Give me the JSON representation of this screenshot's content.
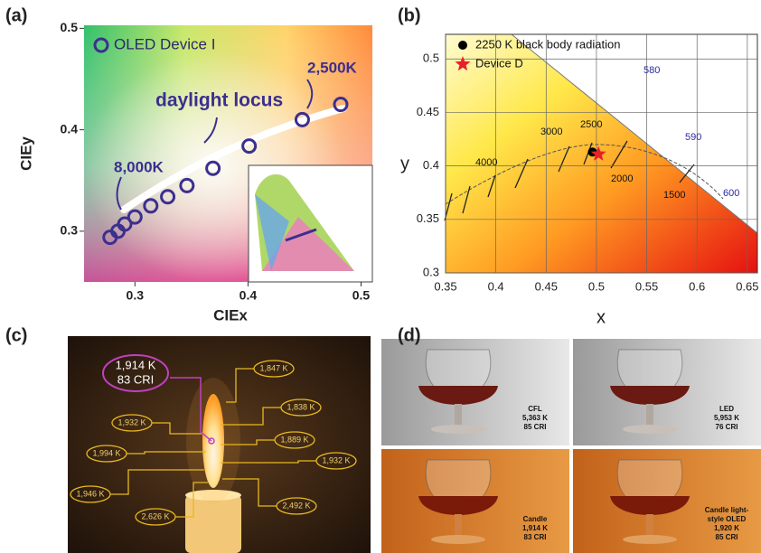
{
  "panel_labels": [
    "(a)",
    "(b)",
    "(c)",
    "(d)"
  ],
  "chart_data": [
    {
      "type": "scatter",
      "xlabel": "CIEx",
      "ylabel": "CIEy",
      "xlim": [
        0.255,
        0.51
      ],
      "ylim": [
        0.25,
        0.503
      ],
      "xticks": [
        0.3,
        0.4,
        0.5
      ],
      "yticks": [
        0.3,
        0.4,
        0.5
      ],
      "grid": false,
      "legend": "upper left",
      "series": [
        {
          "name": "OLED Device I",
          "color": "#3b2f8f",
          "marker": "ring",
          "x": [
            0.278,
            0.285,
            0.291,
            0.3,
            0.314,
            0.329,
            0.346,
            0.369,
            0.401,
            0.448,
            0.482
          ],
          "y": [
            0.294,
            0.3,
            0.307,
            0.314,
            0.325,
            0.334,
            0.345,
            0.362,
            0.384,
            0.41,
            0.425
          ]
        }
      ],
      "annotations": [
        "daylight locus",
        "8,000K",
        "2,500K"
      ]
    },
    {
      "type": "scatter",
      "xlabel": "x",
      "ylabel": "y",
      "xlim": [
        0.35,
        0.66
      ],
      "ylim": [
        0.3,
        0.523
      ],
      "xticks": [
        0.35,
        0.4,
        0.45,
        0.5,
        0.55,
        0.6,
        0.65
      ],
      "yticks": [
        0.3,
        0.35,
        0.4,
        0.45,
        0.5
      ],
      "grid": true,
      "legend": "upper left",
      "series": [
        {
          "name": "2250 K black body radiation",
          "color": "#000000",
          "marker": "circle",
          "x": [
            0.496
          ],
          "y": [
            0.413
          ]
        },
        {
          "name": "Device D",
          "color": "#e8202a",
          "marker": "star",
          "x": [
            0.502
          ],
          "y": [
            0.411
          ]
        }
      ],
      "isotherm_labels": [
        "4000",
        "3000",
        "2500",
        "2000",
        "1500"
      ],
      "wavelength_labels": [
        "580",
        "590",
        "600"
      ]
    }
  ],
  "panel_c": {
    "center_label": [
      "1,914 K",
      "83 CRI"
    ],
    "labels": [
      "1,847 K",
      "1,838 K",
      "1,932 K",
      "1,889 K",
      "1,994 K",
      "1,932 K",
      "1,946 K",
      "2,492 K",
      "2,626 K"
    ]
  },
  "panel_d": {
    "tiles": [
      {
        "lines": [
          "CFL",
          "5,363 K",
          "85 CRI"
        ]
      },
      {
        "lines": [
          "LED",
          "5,953 K",
          "76 CRI"
        ]
      },
      {
        "lines": [
          "Candle",
          "1,914 K",
          "83 CRI"
        ]
      },
      {
        "lines": [
          "Candle light-",
          "style OLED",
          "1,920 K",
          "85 CRI"
        ]
      }
    ]
  }
}
